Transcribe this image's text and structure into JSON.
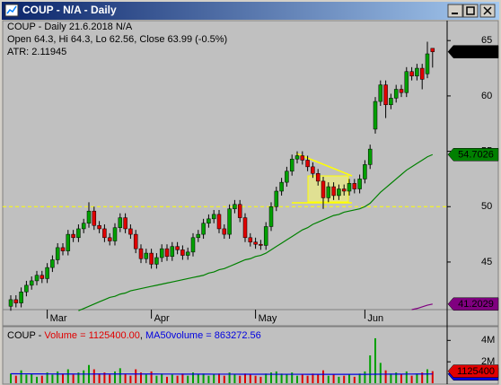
{
  "window_title": "COUP - N/A - Daily",
  "chart_data": [
    {
      "type": "candlestick",
      "title": "COUP - Daily 21.6.2018  N/A",
      "annotations": [
        "Open 64.3, Hi 64.3, Lo 62.56, Close 63.99 (-0.5%)",
        "ATR: 2.11945"
      ],
      "categories": [
        null,
        null,
        null,
        null,
        null,
        null,
        null,
        "Mar",
        null,
        null,
        null,
        null,
        null,
        null,
        null,
        null,
        null,
        null,
        null,
        null,
        null,
        null,
        null,
        null,
        null,
        null,
        null,
        "Apr",
        null,
        null,
        null,
        null,
        null,
        null,
        null,
        null,
        null,
        null,
        null,
        null,
        null,
        null,
        null,
        null,
        null,
        null,
        null,
        "May",
        null,
        null,
        null,
        null,
        null,
        null,
        null,
        null,
        null,
        null,
        null,
        null,
        null,
        null,
        null,
        null,
        null,
        null,
        null,
        null,
        "Jun",
        null,
        null,
        null,
        null,
        null,
        null,
        null,
        null,
        null,
        null,
        null,
        null,
        null
      ],
      "open": [
        41.0,
        41.6,
        41.3,
        42.3,
        42.9,
        43.3,
        43.8,
        43.5,
        44.5,
        45.2,
        46.3,
        46.0,
        47.5,
        47.2,
        48.0,
        48.5,
        49.6,
        48.3,
        48.0,
        47.2,
        46.9,
        48.1,
        49.0,
        48.0,
        47.5,
        46.2,
        45.3,
        45.8,
        44.8,
        45.4,
        46.2,
        45.5,
        46.4,
        46.1,
        45.6,
        45.9,
        47.2,
        47.5,
        48.5,
        48.9,
        49.3,
        48.0,
        47.5,
        49.8,
        50.2,
        49.0,
        47.2,
        46.8,
        46.6,
        46.5,
        48.2,
        50.0,
        51.4,
        52.2,
        53.2,
        54.3,
        54.6,
        54.2,
        53.6,
        53.0,
        52.3,
        50.8,
        51.8,
        51.0,
        51.6,
        51.4,
        52.1,
        51.6,
        52.5,
        53.8,
        57.0,
        59.5,
        61.0,
        59.2,
        59.8,
        60.6,
        60.3,
        62.2,
        61.8,
        62.5,
        62.0,
        64.3
      ],
      "high": [
        42.0,
        42.0,
        42.7,
        43.3,
        43.7,
        44.2,
        44.2,
        44.9,
        45.6,
        46.7,
        46.7,
        47.9,
        47.9,
        48.4,
        48.9,
        50.4,
        50.0,
        48.7,
        48.4,
        47.6,
        48.5,
        49.4,
        49.4,
        48.4,
        47.9,
        46.6,
        46.2,
        46.2,
        45.8,
        46.6,
        46.6,
        46.8,
        46.8,
        46.5,
        46.3,
        47.6,
        47.9,
        48.9,
        49.3,
        49.7,
        49.7,
        48.4,
        50.2,
        50.6,
        50.6,
        49.4,
        47.6,
        47.2,
        47.0,
        48.6,
        50.4,
        51.8,
        52.6,
        53.6,
        54.7,
        55.0,
        55.0,
        54.6,
        54.0,
        53.4,
        52.7,
        52.2,
        52.2,
        52.0,
        52.0,
        52.5,
        52.5,
        52.9,
        54.2,
        55.6,
        59.9,
        61.4,
        61.4,
        60.2,
        61.0,
        61.0,
        62.6,
        62.6,
        62.9,
        62.9,
        64.9,
        64.3
      ],
      "low": [
        40.6,
        40.9,
        40.9,
        41.9,
        42.5,
        42.9,
        43.1,
        43.1,
        44.1,
        44.8,
        45.6,
        45.6,
        46.8,
        46.8,
        47.6,
        48.1,
        47.9,
        47.6,
        46.8,
        46.5,
        46.5,
        47.7,
        47.6,
        47.1,
        45.8,
        44.9,
        44.9,
        44.4,
        44.4,
        45.0,
        45.1,
        45.1,
        45.7,
        45.2,
        45.2,
        45.5,
        46.8,
        47.1,
        48.1,
        48.5,
        47.6,
        47.1,
        47.1,
        49.4,
        48.6,
        46.8,
        46.4,
        46.2,
        46.1,
        46.1,
        47.8,
        49.6,
        51.0,
        51.8,
        52.8,
        53.9,
        53.8,
        53.2,
        52.6,
        51.9,
        49.8,
        50.4,
        50.6,
        50.6,
        51.0,
        51.0,
        51.2,
        51.2,
        52.1,
        53.4,
        56.6,
        59.1,
        58.0,
        58.8,
        59.4,
        59.9,
        59.9,
        61.4,
        61.4,
        60.6,
        61.6,
        62.56
      ],
      "close": [
        41.6,
        41.3,
        42.3,
        42.9,
        43.3,
        43.8,
        43.5,
        44.5,
        45.2,
        46.3,
        46.0,
        47.5,
        47.2,
        48.0,
        48.5,
        49.6,
        48.3,
        48.0,
        47.2,
        46.9,
        48.1,
        49.0,
        48.0,
        47.5,
        46.2,
        45.3,
        45.8,
        44.8,
        45.4,
        46.2,
        45.5,
        46.4,
        46.1,
        45.6,
        45.9,
        47.2,
        47.5,
        48.5,
        48.9,
        49.3,
        48.0,
        47.5,
        49.8,
        50.2,
        49.0,
        47.2,
        46.8,
        46.6,
        46.5,
        48.2,
        50.0,
        51.4,
        52.2,
        53.2,
        54.3,
        54.6,
        54.2,
        53.6,
        53.0,
        52.3,
        50.8,
        51.8,
        51.0,
        51.6,
        51.4,
        52.1,
        51.6,
        52.5,
        53.8,
        55.2,
        59.5,
        61.0,
        59.2,
        59.8,
        60.6,
        60.3,
        62.2,
        61.8,
        62.5,
        61.5,
        63.8,
        63.99
      ],
      "up_color": "#00a000",
      "down_color": "#e00000",
      "last_color": "#000000",
      "series": [
        {
          "color": "#008000",
          "values": [
            null,
            null,
            null,
            null,
            null,
            null,
            null,
            null,
            null,
            null,
            null,
            null,
            null,
            40.6,
            40.8,
            41.0,
            41.2,
            41.4,
            41.6,
            41.8,
            41.9,
            42.1,
            42.2,
            42.4,
            42.5,
            42.6,
            42.7,
            42.8,
            42.9,
            43.0,
            43.1,
            43.2,
            43.3,
            43.4,
            43.5,
            43.6,
            43.7,
            43.8,
            44.0,
            44.1,
            44.3,
            44.4,
            44.6,
            44.8,
            45.0,
            45.2,
            45.3,
            45.5,
            45.6,
            45.8,
            46.1,
            46.4,
            46.7,
            47.0,
            47.3,
            47.6,
            47.9,
            48.1,
            48.4,
            48.6,
            48.8,
            49.0,
            49.2,
            49.3,
            49.5,
            49.6,
            49.7,
            49.8,
            50.0,
            50.3,
            50.8,
            51.3,
            51.7,
            52.1,
            52.5,
            52.9,
            53.3,
            53.6,
            53.9,
            54.2,
            54.5,
            54.7026
          ]
        },
        {
          "color": "#800080",
          "values": [
            null,
            null,
            null,
            null,
            null,
            null,
            null,
            null,
            null,
            null,
            null,
            null,
            null,
            null,
            null,
            null,
            null,
            null,
            null,
            null,
            null,
            null,
            null,
            null,
            null,
            null,
            null,
            null,
            null,
            null,
            null,
            null,
            null,
            null,
            null,
            null,
            null,
            null,
            null,
            null,
            null,
            null,
            null,
            null,
            null,
            null,
            null,
            null,
            null,
            null,
            null,
            null,
            null,
            null,
            null,
            null,
            null,
            null,
            null,
            null,
            null,
            null,
            null,
            null,
            null,
            null,
            null,
            null,
            null,
            null,
            null,
            null,
            null,
            null,
            null,
            null,
            null,
            40.7,
            40.8,
            40.95,
            41.1,
            41.2029
          ]
        }
      ],
      "reference_line": 50,
      "reference_color": "#ffff00",
      "ylim": [
        40.7,
        66.8
      ],
      "yticks": [
        45,
        50,
        55,
        60,
        65
      ]
    },
    {
      "type": "bar",
      "legend_text": [
        "COUP - ",
        "Volume = 1125400.00",
        ", ",
        "MA50volume = 863272.56"
      ],
      "legend_colors": [
        "#000000",
        "#e00000",
        "#000000",
        "#0000e0"
      ],
      "values": [
        900000,
        700000,
        1200000,
        800000,
        900000,
        600000,
        700000,
        1000000,
        800000,
        1100000,
        900000,
        1300000,
        800000,
        1000000,
        1200000,
        1700000,
        1300000,
        900000,
        1000000,
        800000,
        1100000,
        1400000,
        900000,
        700000,
        1300000,
        1000000,
        800000,
        1100000,
        700000,
        900000,
        600000,
        800000,
        700000,
        900000,
        700000,
        1000000,
        800000,
        900000,
        700000,
        800000,
        900000,
        700000,
        1000000,
        800000,
        700000,
        900000,
        800000,
        700000,
        600000,
        900000,
        1000000,
        1100000,
        900000,
        800000,
        1000000,
        700000,
        800000,
        700000,
        900000,
        800000,
        1200000,
        700000,
        800000,
        600000,
        700000,
        800000,
        600000,
        900000,
        1100000,
        2600000,
        4200000,
        1900000,
        1200000,
        900000,
        1000000,
        800000,
        1100000,
        700000,
        900000,
        1000000,
        1300000,
        1125400
      ],
      "color": "#e00000",
      "series": [
        {
          "color": "#0000e0",
          "values": [
            880000,
            878000,
            876000,
            874000,
            872000,
            870000,
            868000,
            866000,
            864000,
            862000,
            860000,
            858000,
            857000,
            856000,
            855000,
            856000,
            857000,
            858000,
            859000,
            860000,
            861000,
            862000,
            863000,
            862000,
            861000,
            860000,
            859000,
            858000,
            857000,
            856000,
            855000,
            854000,
            853000,
            852000,
            851000,
            850000,
            849000,
            848000,
            847000,
            846000,
            845000,
            844000,
            843000,
            842000,
            841000,
            840000,
            839000,
            838000,
            837000,
            836000,
            835000,
            834000,
            834000,
            833000,
            833000,
            832000,
            832000,
            831000,
            831000,
            830000,
            830000,
            829000,
            829000,
            828000,
            828000,
            827000,
            827000,
            828000,
            830000,
            832000,
            840000,
            843000,
            846000,
            848000,
            850000,
            852000,
            854000,
            856000,
            858000,
            860000,
            862000,
            863272.56
          ],
          "value_labels": [
            null,
            null,
            null,
            null,
            null,
            null,
            null,
            null,
            null,
            null,
            null,
            null,
            null,
            null,
            null,
            null,
            null,
            null,
            null,
            null,
            null,
            null,
            null,
            null,
            null,
            null,
            null,
            null,
            null,
            null,
            null,
            null,
            null,
            null,
            null,
            null,
            null,
            null,
            null,
            null,
            null,
            null,
            null,
            null,
            null,
            null,
            null,
            null,
            null,
            null,
            null,
            null,
            null,
            null,
            null,
            null,
            null,
            null,
            null,
            null,
            null,
            null,
            null,
            null,
            null,
            null,
            null,
            null,
            null,
            null,
            null,
            null,
            null,
            null,
            null,
            null,
            null,
            null,
            null,
            null,
            null,
            "863273"
          ]
        }
      ],
      "ylim": [
        0,
        5200000
      ],
      "yticks": [
        {
          "value": 2000000,
          "label": "2M"
        },
        {
          "value": 4000000,
          "label": "4M"
        }
      ]
    }
  ]
}
